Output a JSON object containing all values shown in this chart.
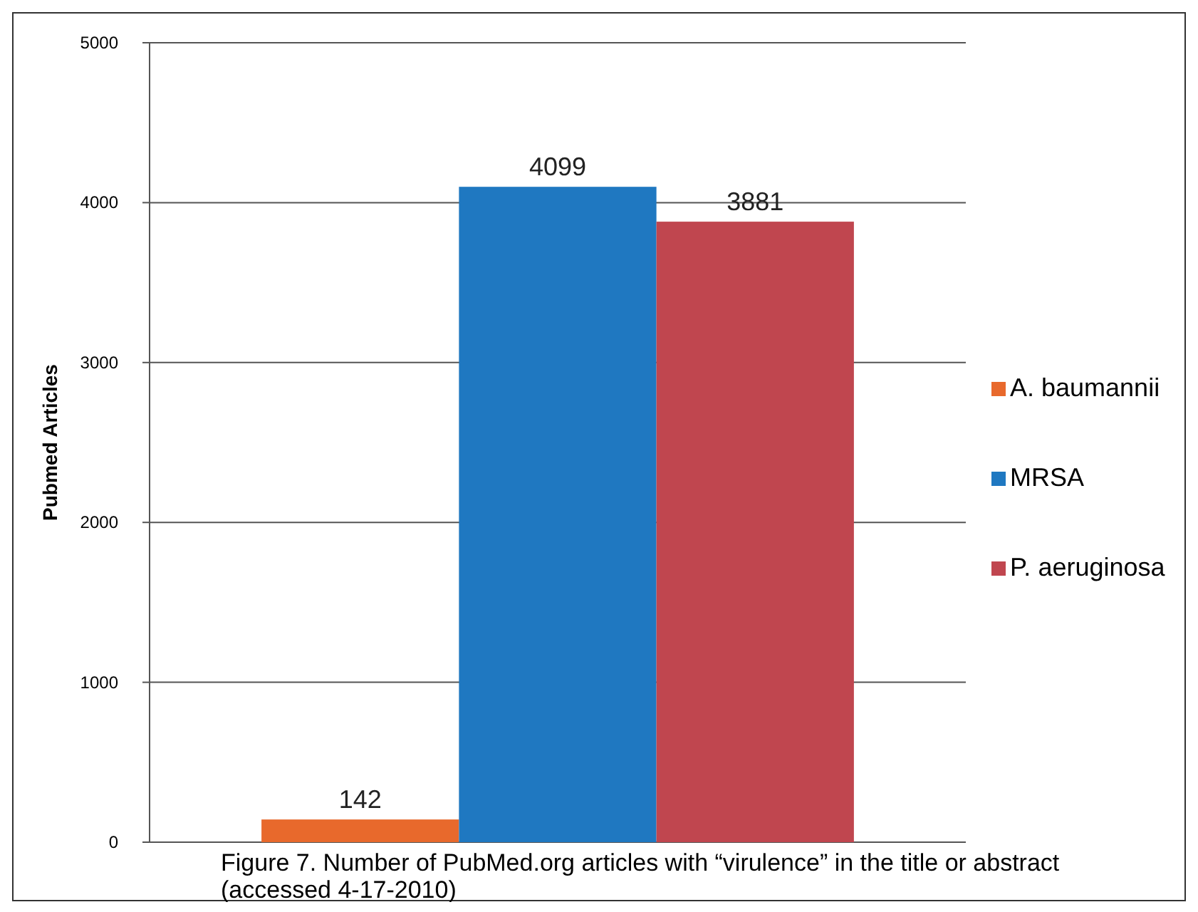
{
  "chart_data": {
    "type": "bar",
    "ylabel": "Pubmed Articles",
    "categories": [
      null
    ],
    "series": [
      {
        "name": "A. baumannii",
        "color": "#e8692c",
        "values": [
          142
        ]
      },
      {
        "name": "MRSA",
        "color": "#1f78c1",
        "values": [
          4099
        ]
      },
      {
        "name": "P. aeruginosa",
        "color": "#c0464f",
        "values": [
          3881
        ]
      }
    ],
    "ylim": [
      0,
      5000
    ],
    "yticks": [
      0,
      1000,
      2000,
      3000,
      4000,
      5000
    ],
    "grid": "y",
    "legend": "right",
    "data_labels": true,
    "annotations": [
      "Figure 7.  Number of PubMed.org articles with “virulence” in the title or abstract (accessed 4-17-2010)"
    ]
  }
}
